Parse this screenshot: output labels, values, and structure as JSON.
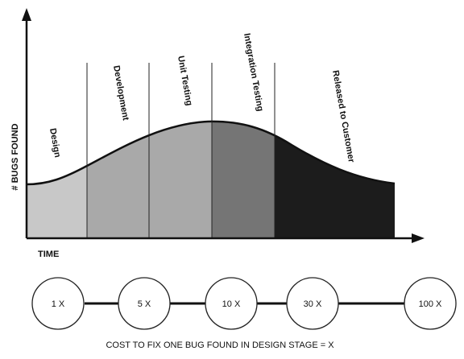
{
  "diagram": {
    "y_axis_label": "# BUGS FOUND",
    "x_axis_label": "TIME",
    "stages": [
      {
        "name": "Design",
        "fill": "#c8c8c8"
      },
      {
        "name": "Development",
        "fill": "#a9a9a9"
      },
      {
        "name": "Unit Testing",
        "fill": "#a9a9a9"
      },
      {
        "name": "Integration Testing",
        "fill": "#757575"
      },
      {
        "name": "Released to Customer",
        "fill": "#1c1c1c"
      }
    ],
    "costs": [
      "1 X",
      "5 X",
      "10 X",
      "30 X",
      "100 X"
    ],
    "caption": "COST TO FIX ONE BUG FOUND IN DESIGN STAGE = X"
  }
}
